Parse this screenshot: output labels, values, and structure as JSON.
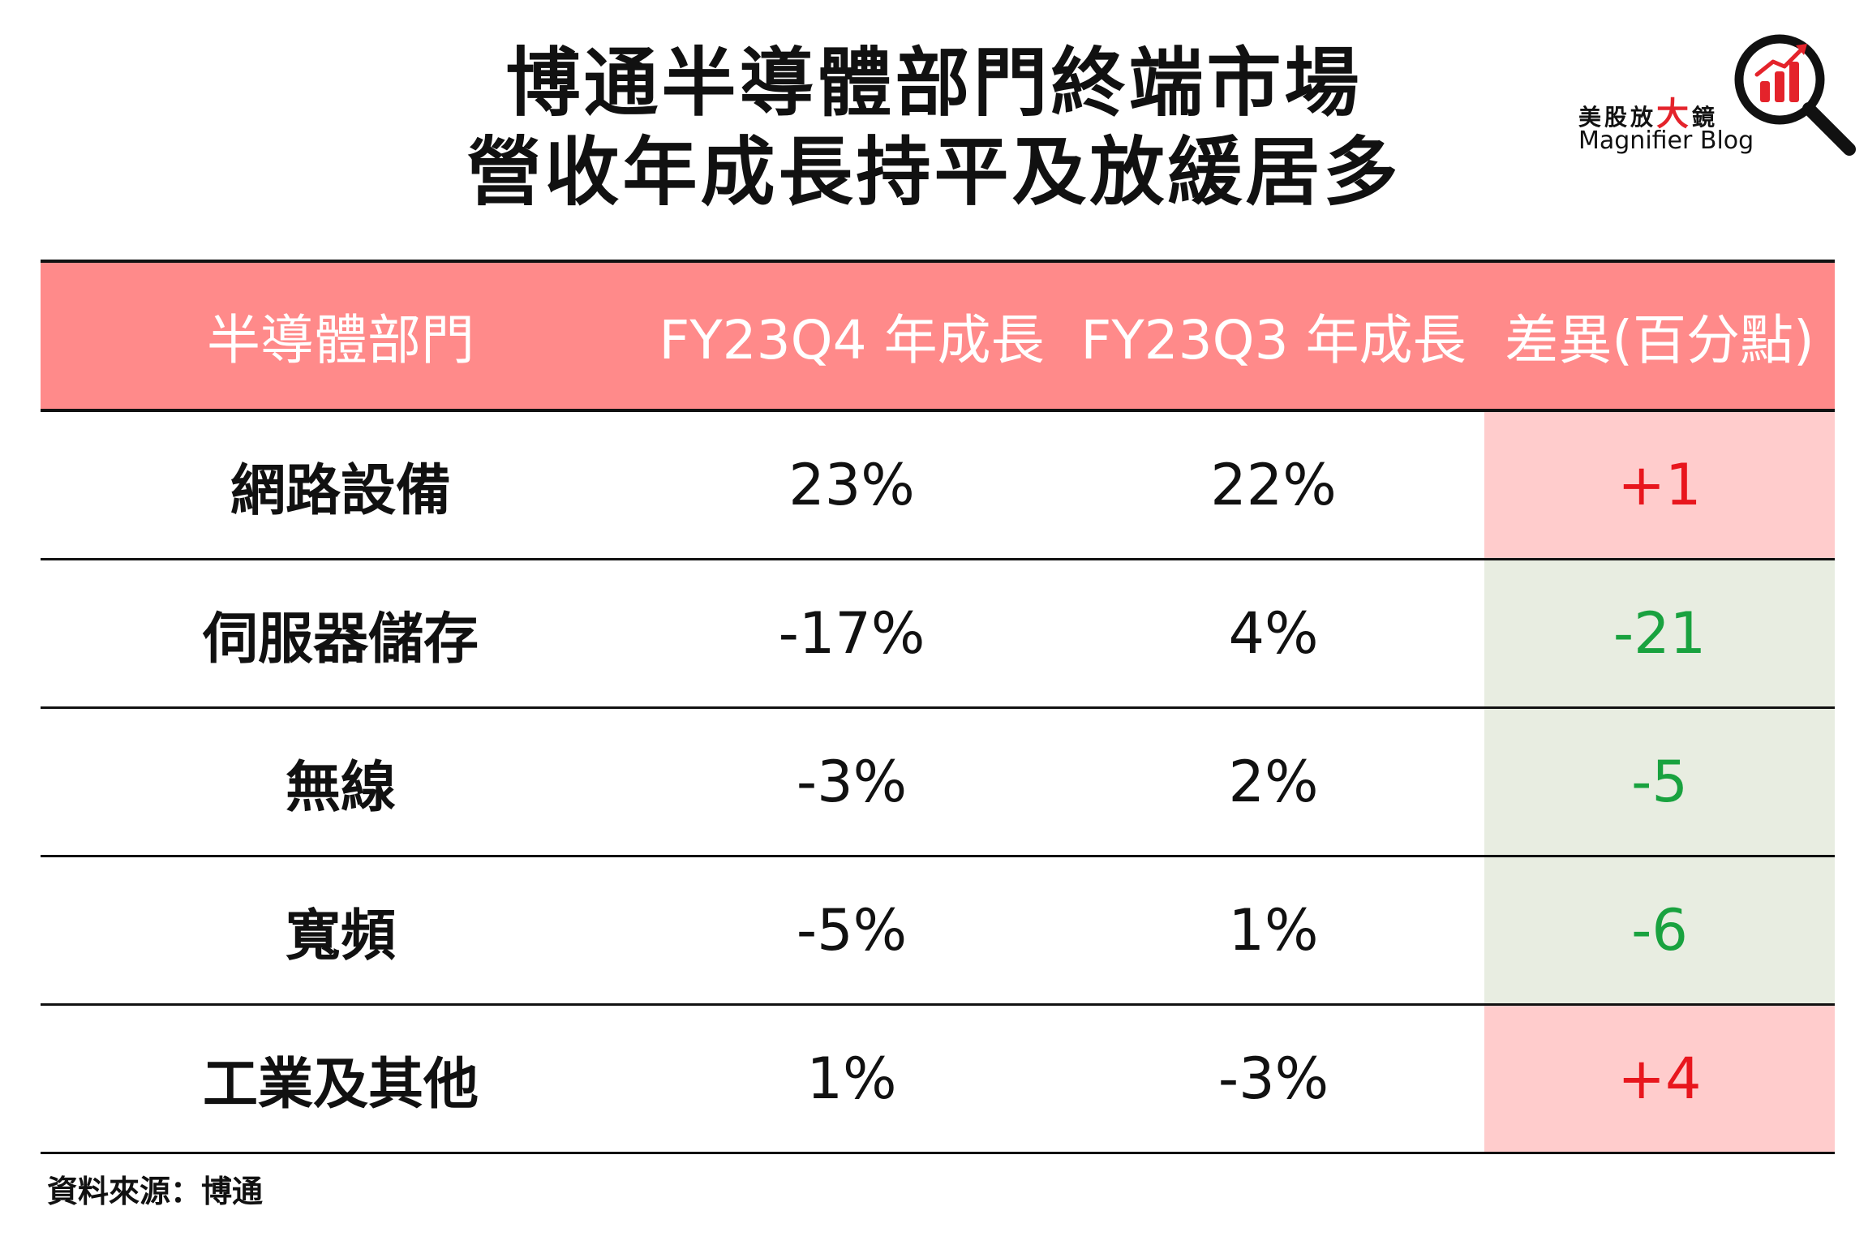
{
  "title": {
    "line1": "博通半導體部門終端市場",
    "line2": "營收年成長持平及放緩居多"
  },
  "logo": {
    "cn_part1": "美股放",
    "cn_big": "大",
    "cn_part2": "鏡",
    "en": "Magnifier Blog",
    "icon": "magnifier-chart-icon",
    "accent_color": "#e4232b"
  },
  "colors": {
    "header_bg": "#ff8a8a",
    "positive_bg": "#ffcccc",
    "positive_text": "#e8161d",
    "negative_bg": "#e8ede1",
    "negative_text": "#19a23f"
  },
  "chart_data": {
    "type": "table",
    "columns": [
      "半導體部門",
      "FY23Q4 年成長",
      "FY23Q3 年成長",
      "差異(百分點)"
    ],
    "rows": [
      {
        "segment": "網路設備",
        "fy23q4": "23%",
        "fy23q3": "22%",
        "diff": "+1",
        "trend": "up"
      },
      {
        "segment": "伺服器儲存",
        "fy23q4": "-17%",
        "fy23q3": "4%",
        "diff": "-21",
        "trend": "down"
      },
      {
        "segment": "無線",
        "fy23q4": "-3%",
        "fy23q3": "2%",
        "diff": "-5",
        "trend": "down"
      },
      {
        "segment": "寬頻",
        "fy23q4": "-5%",
        "fy23q3": "1%",
        "diff": "-6",
        "trend": "down"
      },
      {
        "segment": "工業及其他",
        "fy23q4": "1%",
        "fy23q3": "-3%",
        "diff": "+4",
        "trend": "up"
      }
    ]
  },
  "source": "資料來源：博通"
}
